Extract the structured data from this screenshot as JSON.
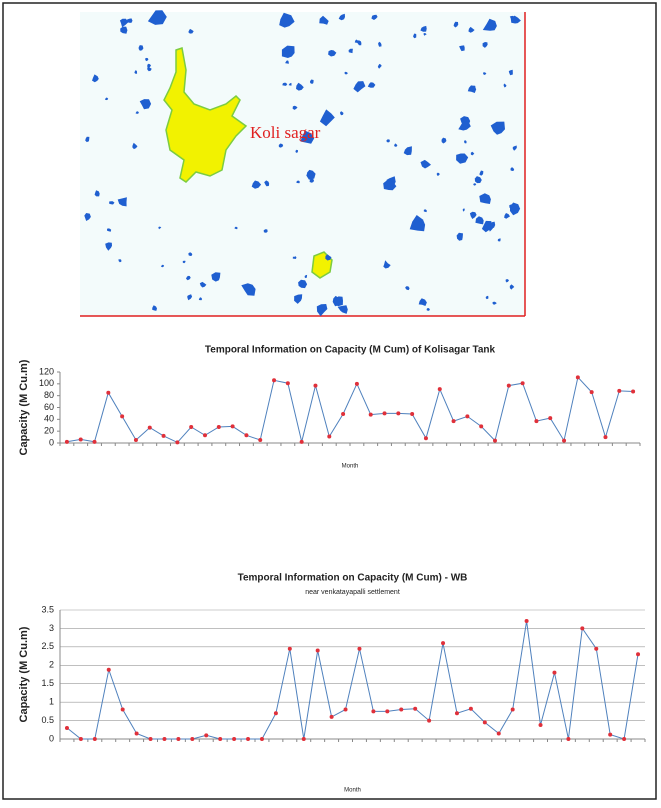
{
  "map": {
    "label": "Koli sagar"
  },
  "chart_data": [
    {
      "type": "line",
      "title": "Temporal Information on Capacity (M Cum) of Kolisagar Tank",
      "y_label": "Capacity (M Cu.m)",
      "x_label": "Month",
      "categories": [
        null,
        null,
        null,
        null,
        null,
        null,
        null,
        null,
        null,
        null,
        null,
        null,
        null,
        null,
        null,
        null,
        null,
        null,
        null,
        null,
        null,
        null,
        null,
        null,
        null,
        null,
        null,
        null,
        null,
        null,
        null,
        null,
        null,
        null,
        null,
        null,
        null,
        null,
        null,
        null,
        null,
        null
      ],
      "series": [
        {
          "color": "#4f81bd",
          "marker_color": "#e0303a",
          "values": [
            2,
            6,
            2,
            85,
            45,
            5,
            26,
            12,
            1,
            27,
            13,
            27,
            28,
            13,
            5,
            106,
            101,
            2,
            97,
            11,
            49,
            100,
            48,
            50,
            50,
            49,
            8,
            91,
            37,
            45,
            28,
            4,
            97,
            101,
            37,
            42,
            4,
            111,
            86,
            10,
            88,
            87
          ]
        }
      ],
      "ylim": [
        0,
        120
      ],
      "yticks": [
        0,
        20,
        40,
        60,
        80,
        100,
        120
      ],
      "grid": false
    },
    {
      "type": "line",
      "title": "Temporal Information on Capacity (M Cum)  - WB",
      "subtitle": "near venkatayapalli settlement",
      "y_label": "Capacity (M Cu.m)",
      "x_label": "Month",
      "categories": [
        null,
        null,
        null,
        null,
        null,
        null,
        null,
        null,
        null,
        null,
        null,
        null,
        null,
        null,
        null,
        null,
        null,
        null,
        null,
        null,
        null,
        null,
        null,
        null,
        null,
        null,
        null,
        null,
        null,
        null,
        null,
        null,
        null,
        null,
        null,
        null,
        null,
        null,
        null,
        null,
        null,
        null
      ],
      "series": [
        {
          "color": "#4f81bd",
          "marker_color": "#e0303a",
          "values": [
            0.3,
            0,
            0,
            1.88,
            0.8,
            0.15,
            0,
            0,
            0,
            0,
            0.1,
            0,
            0,
            0,
            0,
            0.7,
            2.45,
            0,
            2.4,
            0.6,
            0.8,
            2.45,
            0.75,
            0.75,
            0.8,
            0.82,
            0.5,
            2.6,
            0.7,
            0.82,
            0.45,
            0.15,
            0.8,
            3.2,
            0.38,
            1.8,
            0,
            3.0,
            2.45,
            0.12,
            0,
            2.3
          ]
        }
      ],
      "ylim": [
        0,
        3.5
      ],
      "yticks": [
        0,
        0.5,
        1,
        1.5,
        2,
        2.5,
        3,
        3.5
      ],
      "grid": true
    }
  ]
}
